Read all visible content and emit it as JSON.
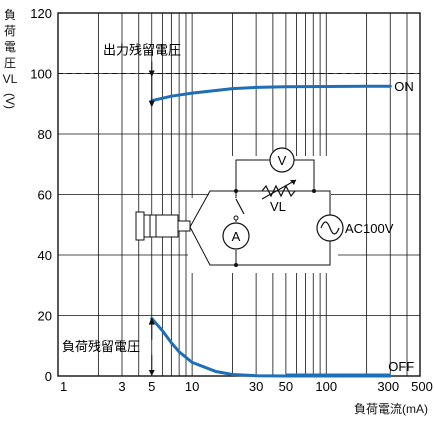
{
  "chart_data": {
    "type": "line",
    "xscale": "log",
    "xlim": [
      1,
      500
    ],
    "ylim": [
      0,
      120
    ],
    "xticks": [
      1,
      3,
      5,
      10,
      30,
      50,
      100,
      300,
      500
    ],
    "yticks": [
      0,
      20,
      40,
      60,
      80,
      100,
      120
    ],
    "xlabel": "負荷電流(mA)",
    "ylabel_chars": [
      "負",
      "荷",
      "電",
      "圧",
      "VL",
      "(V)"
    ],
    "reference_line_y": 100,
    "grid": true,
    "series": [
      {
        "name": "ON",
        "x": [
          5,
          7,
          10,
          20,
          30,
          50,
          100,
          200,
          300
        ],
        "y": [
          91,
          92.5,
          93.5,
          95,
          95.4,
          95.6,
          95.7,
          95.8,
          95.8
        ]
      },
      {
        "name": "OFF",
        "x": [
          5,
          6,
          7,
          8,
          10,
          15,
          20,
          30,
          50,
          100,
          300
        ],
        "y": [
          19,
          15,
          11,
          8,
          4.5,
          1.5,
          0.5,
          0.1,
          0,
          0,
          0
        ]
      }
    ],
    "annotations": {
      "on_residual": "出力残留電圧",
      "off_residual": "負荷残留電圧",
      "on_label": "ON",
      "off_label": "OFF"
    },
    "circuit": {
      "voltmeter": "V",
      "ammeter": "A",
      "resistor_label": "VL",
      "source_label": "AC100V"
    }
  }
}
